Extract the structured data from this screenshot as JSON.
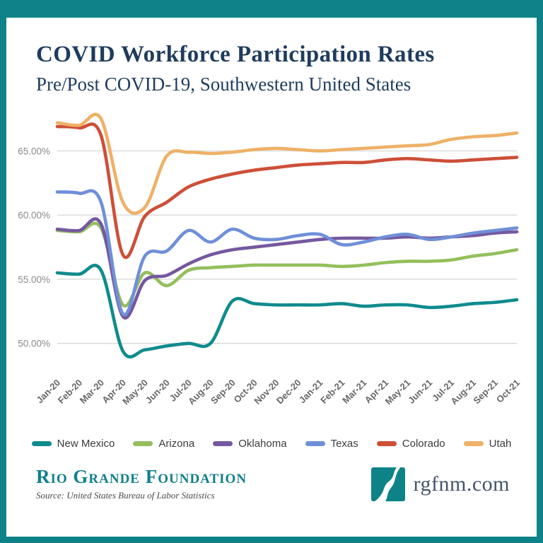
{
  "header": {
    "title": "COVID Workforce Participation Rates",
    "subtitle": "Pre/Post COVID-19, Southwestern United States"
  },
  "chart_data": {
    "type": "line",
    "title": "COVID Workforce Participation Rates",
    "x": [
      "Jan-20",
      "Feb-20",
      "Mar-20",
      "Apr-20",
      "May-20",
      "Jun-20",
      "Jul-20",
      "Aug-20",
      "Sep-20",
      "Oct-20",
      "Nov-20",
      "Dec-20",
      "Jan-21",
      "Feb-21",
      "Mar-21",
      "Apr-21",
      "May-21",
      "Jun-21",
      "Jul-21",
      "Aug-21",
      "Sep-21",
      "Oct-21"
    ],
    "series": [
      {
        "name": "New Mexico",
        "color": "#0f8b8d",
        "values": [
          55.5,
          55.4,
          55.7,
          49.4,
          49.5,
          49.8,
          50.0,
          50.0,
          53.3,
          53.1,
          53.0,
          53.0,
          53.0,
          53.1,
          52.9,
          53.0,
          53.0,
          52.8,
          52.9,
          53.1,
          53.2,
          53.4
        ]
      },
      {
        "name": "Arizona",
        "color": "#94bf5c",
        "values": [
          58.8,
          58.7,
          59.0,
          53.0,
          55.5,
          54.5,
          55.7,
          55.9,
          56.0,
          56.1,
          56.1,
          56.1,
          56.1,
          56.0,
          56.1,
          56.3,
          56.4,
          56.4,
          56.5,
          56.8,
          57.0,
          57.3
        ]
      },
      {
        "name": "Oklahoma",
        "color": "#75589f",
        "values": [
          58.9,
          58.8,
          59.3,
          52.1,
          54.9,
          55.3,
          56.2,
          56.9,
          57.3,
          57.5,
          57.7,
          57.9,
          58.1,
          58.2,
          58.2,
          58.2,
          58.3,
          58.2,
          58.3,
          58.4,
          58.6,
          58.7
        ]
      },
      {
        "name": "Texas",
        "color": "#6f8fd8",
        "values": [
          61.8,
          61.7,
          61.0,
          52.3,
          56.8,
          57.2,
          58.8,
          57.9,
          58.9,
          58.2,
          58.1,
          58.4,
          58.5,
          57.7,
          57.9,
          58.3,
          58.5,
          58.1,
          58.3,
          58.6,
          58.8,
          59.0
        ]
      },
      {
        "name": "Colorado",
        "color": "#cd4f38",
        "values": [
          66.9,
          66.8,
          66.2,
          56.9,
          59.9,
          61.0,
          62.2,
          62.8,
          63.2,
          63.5,
          63.7,
          63.9,
          64.0,
          64.1,
          64.1,
          64.3,
          64.4,
          64.3,
          64.2,
          64.3,
          64.4,
          64.5
        ]
      },
      {
        "name": "Utah",
        "color": "#eeb168",
        "values": [
          67.2,
          67.0,
          67.5,
          61.0,
          60.6,
          64.6,
          64.9,
          64.8,
          64.9,
          65.1,
          65.2,
          65.1,
          65.0,
          65.1,
          65.2,
          65.3,
          65.4,
          65.5,
          65.9,
          66.1,
          66.2,
          66.4
        ]
      }
    ],
    "ylim": [
      48,
      68
    ],
    "yticks": [
      50,
      55,
      60,
      65
    ],
    "ytick_labels": [
      "50.00%",
      "55.00%",
      "60.00%",
      "65.00%"
    ],
    "xlabel": "",
    "ylabel": "",
    "grid": true,
    "legend_position": "bottom"
  },
  "footer": {
    "org": "Rio Grande Foundation",
    "source": "Source: United States Bureau of Labor Statistics",
    "url": "rgfnm.com"
  },
  "colors": {
    "frame_teal": "#0e8387",
    "title_navy": "#1e3c5e",
    "org_teal": "#0f7f8a",
    "gridline": "#d9d9d9",
    "axis_text": "#6b6b6b"
  }
}
